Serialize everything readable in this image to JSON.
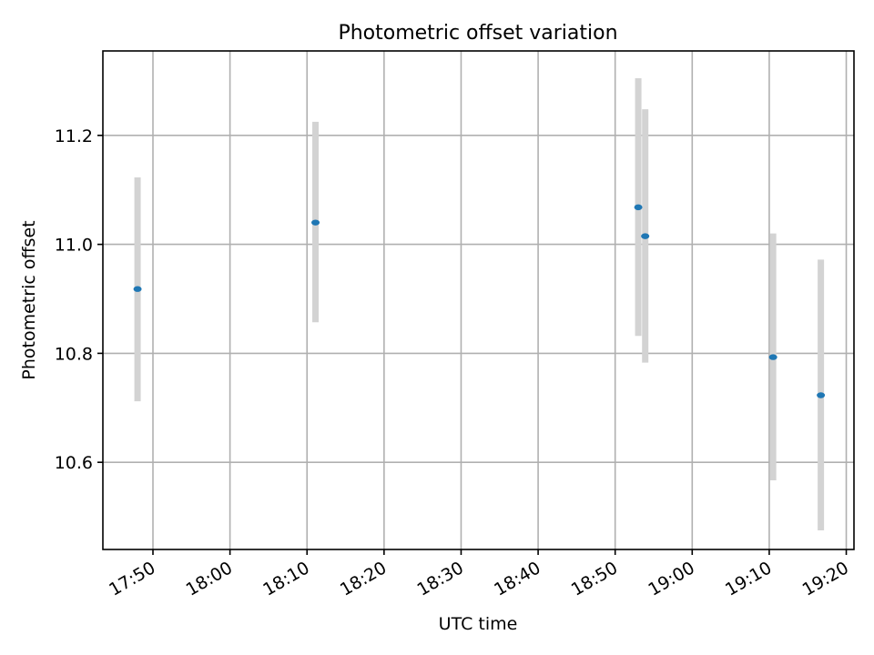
{
  "chart_data": {
    "type": "scatter",
    "title": "Photometric offset variation",
    "xlabel": "UTC time",
    "ylabel": "Photometric offset",
    "grid": true,
    "x_unit": "minutes since 17:40 UTC",
    "xlim": [
      3.5,
      101
    ],
    "ylim": [
      10.44,
      11.355
    ],
    "x_ticks": [
      {
        "value": 10,
        "label": "17:50"
      },
      {
        "value": 20,
        "label": "18:00"
      },
      {
        "value": 30,
        "label": "18:10"
      },
      {
        "value": 40,
        "label": "18:20"
      },
      {
        "value": 50,
        "label": "18:30"
      },
      {
        "value": 60,
        "label": "18:40"
      },
      {
        "value": 70,
        "label": "18:50"
      },
      {
        "value": 80,
        "label": "19:00"
      },
      {
        "value": 90,
        "label": "19:10"
      },
      {
        "value": 100,
        "label": "19:20"
      }
    ],
    "y_ticks": [
      {
        "value": 10.6,
        "label": "10.6"
      },
      {
        "value": 10.8,
        "label": "10.8"
      },
      {
        "value": 11.0,
        "label": "11.0"
      },
      {
        "value": 11.2,
        "label": "11.2"
      }
    ],
    "points": [
      {
        "x": 8.0,
        "time": "17:48",
        "y": 10.918,
        "yerr_low": 10.712,
        "yerr_high": 11.123
      },
      {
        "x": 31.1,
        "time": "18:11",
        "y": 11.04,
        "yerr_low": 10.857,
        "yerr_high": 11.225
      },
      {
        "x": 73.0,
        "time": "18:53",
        "y": 11.068,
        "yerr_low": 10.832,
        "yerr_high": 11.305
      },
      {
        "x": 73.9,
        "time": "18:54",
        "y": 11.015,
        "yerr_low": 10.783,
        "yerr_high": 11.248
      },
      {
        "x": 90.5,
        "time": "19:10",
        "y": 10.793,
        "yerr_low": 10.567,
        "yerr_high": 11.02
      },
      {
        "x": 96.7,
        "time": "19:17",
        "y": 10.723,
        "yerr_low": 10.475,
        "yerr_high": 10.972
      }
    ],
    "colors": {
      "point": "#1f77b4",
      "errorbar": "#d3d3d3",
      "grid": "#b0b0b0"
    }
  }
}
